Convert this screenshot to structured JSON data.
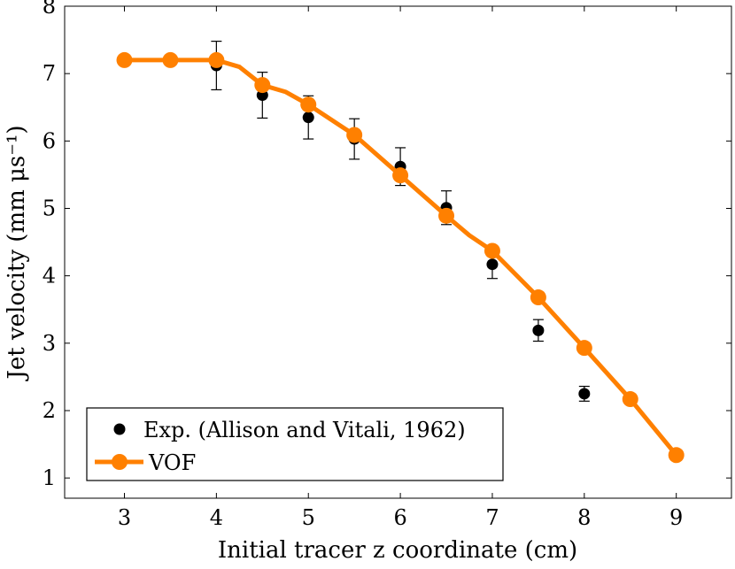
{
  "chart_data": {
    "type": "line",
    "title": "",
    "xlabel": "Initial tracer z coordinate (cm)",
    "ylabel": "Jet velocity (mm μs⁻¹)",
    "xlim": [
      2.35,
      9.6
    ],
    "ylim": [
      0.7,
      8
    ],
    "xticks": [
      3,
      4,
      5,
      6,
      7,
      8,
      9
    ],
    "yticks": [
      1,
      2,
      3,
      4,
      5,
      6,
      7,
      8
    ],
    "grid": false,
    "legend_position": "bottom-left",
    "series": [
      {
        "name": "Exp. (Allison and Vitali, 1962)",
        "kind": "scatter-errorbar",
        "color": "#000000",
        "x": [
          4.0,
          4.5,
          5.0,
          5.5,
          6.0,
          6.5,
          7.0,
          7.5,
          8.0
        ],
        "y": [
          7.12,
          6.68,
          6.35,
          6.03,
          5.62,
          5.01,
          4.17,
          3.19,
          2.25
        ],
        "err_low": [
          0.36,
          0.34,
          0.32,
          0.3,
          0.28,
          0.25,
          0.21,
          0.16,
          0.11
        ],
        "err_high": [
          0.36,
          0.34,
          0.32,
          0.3,
          0.28,
          0.25,
          0.21,
          0.16,
          0.11
        ]
      },
      {
        "name": "VOF",
        "kind": "line-markers",
        "color": "#ff8000",
        "x": [
          3.0,
          3.5,
          4.0,
          4.25,
          4.5,
          4.75,
          5.0,
          5.5,
          6.0,
          6.5,
          6.75,
          7.0,
          7.5,
          8.0,
          8.5,
          9.0
        ],
        "y": [
          7.2,
          7.2,
          7.2,
          7.1,
          6.83,
          6.73,
          6.54,
          6.09,
          5.49,
          4.89,
          4.6,
          4.37,
          3.68,
          2.93,
          2.17,
          1.34
        ],
        "markers": [
          true,
          true,
          true,
          false,
          true,
          false,
          true,
          true,
          true,
          true,
          false,
          true,
          true,
          true,
          true,
          true
        ]
      }
    ]
  }
}
